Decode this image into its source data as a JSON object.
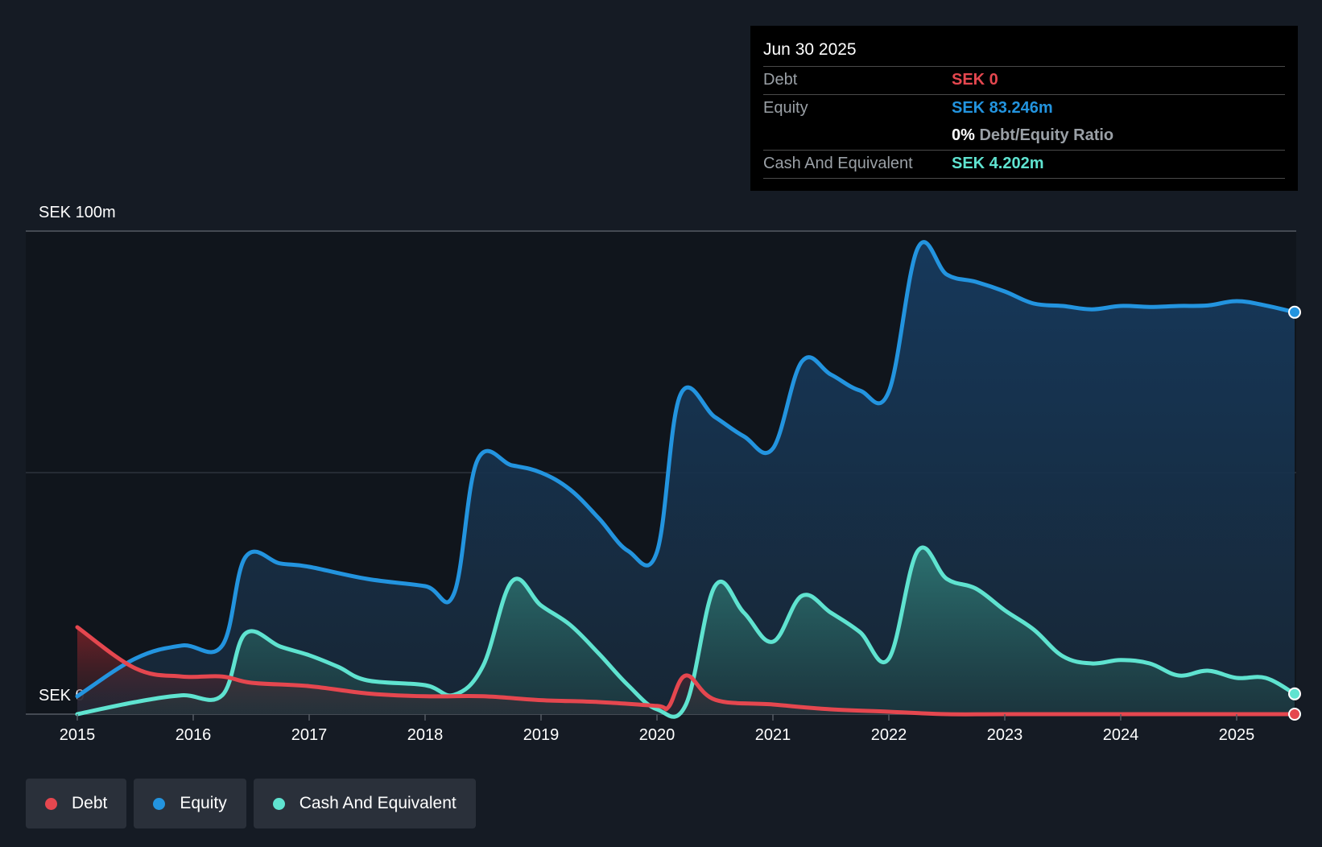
{
  "chart_data": {
    "type": "area",
    "y_axis_labels": [
      "SEK 100m",
      "SEK 0"
    ],
    "ylim": [
      0,
      100
    ],
    "x_ticks": [
      "2015",
      "2016",
      "2017",
      "2018",
      "2019",
      "2020",
      "2021",
      "2022",
      "2023",
      "2024",
      "2025"
    ],
    "grid": true,
    "series": [
      {
        "name": "Debt",
        "color": "#e5474f",
        "x": [
          2015.0,
          2015.5,
          2015.9,
          2016.25,
          2016.5,
          2017.0,
          2017.5,
          2018.0,
          2018.5,
          2019.0,
          2019.5,
          2020.0,
          2020.1,
          2020.25,
          2020.5,
          2021.0,
          2021.5,
          2022.0,
          2022.5,
          2023.0,
          2024.0,
          2025.0,
          2025.5
        ],
        "values": [
          18.0,
          9.5,
          7.8,
          7.8,
          6.5,
          5.8,
          4.3,
          3.7,
          3.7,
          2.9,
          2.5,
          1.7,
          1.5,
          8.0,
          3.0,
          2.0,
          1.0,
          0.5,
          0.0,
          0.0,
          0.0,
          0.0,
          0.0
        ]
      },
      {
        "name": "Equity",
        "color": "#2394df",
        "x": [
          2015.0,
          2015.5,
          2015.9,
          2016.25,
          2016.45,
          2016.75,
          2017.0,
          2017.5,
          2018.0,
          2018.25,
          2018.45,
          2018.75,
          2019.0,
          2019.25,
          2019.5,
          2019.75,
          2020.0,
          2020.2,
          2020.5,
          2020.75,
          2021.0,
          2021.25,
          2021.5,
          2021.75,
          2022.0,
          2022.25,
          2022.5,
          2022.75,
          2023.0,
          2023.25,
          2023.5,
          2023.75,
          2024.0,
          2024.25,
          2024.5,
          2024.75,
          2025.0,
          2025.25,
          2025.5
        ],
        "values": [
          3.7,
          11.5,
          14.2,
          14.2,
          32.5,
          31.2,
          30.5,
          28.0,
          26.5,
          25.0,
          52.5,
          51.5,
          50.0,
          46.5,
          40.5,
          33.8,
          33.6,
          66.0,
          61.5,
          57.5,
          55.0,
          73.0,
          70.3,
          67.0,
          66.8,
          96.5,
          91.0,
          89.5,
          87.5,
          85.0,
          84.5,
          83.8,
          84.5,
          84.3,
          84.5,
          84.6,
          85.5,
          84.6,
          83.2
        ]
      },
      {
        "name": "Cash And Equivalent",
        "color": "#5fe3d0",
        "x": [
          2015.0,
          2015.5,
          2015.9,
          2016.25,
          2016.45,
          2016.75,
          2017.0,
          2017.25,
          2017.5,
          2018.0,
          2018.25,
          2018.5,
          2018.75,
          2019.0,
          2019.25,
          2019.5,
          2019.75,
          2020.0,
          2020.25,
          2020.5,
          2020.75,
          2021.0,
          2021.25,
          2021.5,
          2021.75,
          2022.0,
          2022.25,
          2022.5,
          2022.75,
          2023.0,
          2023.25,
          2023.5,
          2023.75,
          2024.0,
          2024.25,
          2024.5,
          2024.75,
          2025.0,
          2025.25,
          2025.5
        ],
        "values": [
          0.0,
          2.5,
          3.9,
          3.9,
          16.7,
          14.0,
          12.2,
          9.8,
          7.0,
          6.0,
          4.0,
          10.0,
          27.5,
          22.5,
          18.5,
          12.5,
          6.0,
          1.0,
          2.0,
          26.5,
          21.0,
          15.0,
          24.5,
          21.0,
          17.0,
          11.5,
          33.8,
          28.0,
          26.0,
          21.5,
          17.5,
          12.0,
          10.5,
          11.2,
          10.5,
          8.0,
          9.0,
          7.5,
          7.5,
          4.2
        ]
      }
    ]
  },
  "tooltip": {
    "date": "Jun 30 2025",
    "debt_label": "Debt",
    "debt_value": "SEK 0",
    "equity_label": "Equity",
    "equity_value": "SEK 83.246m",
    "ratio_value": "0%",
    "ratio_label": "Debt/Equity Ratio",
    "cash_label": "Cash And Equivalent",
    "cash_value": "SEK 4.202m"
  },
  "legend": [
    {
      "label": "Debt",
      "color": "#e5474f"
    },
    {
      "label": "Equity",
      "color": "#2394df"
    },
    {
      "label": "Cash And Equivalent",
      "color": "#5fe3d0"
    }
  ]
}
